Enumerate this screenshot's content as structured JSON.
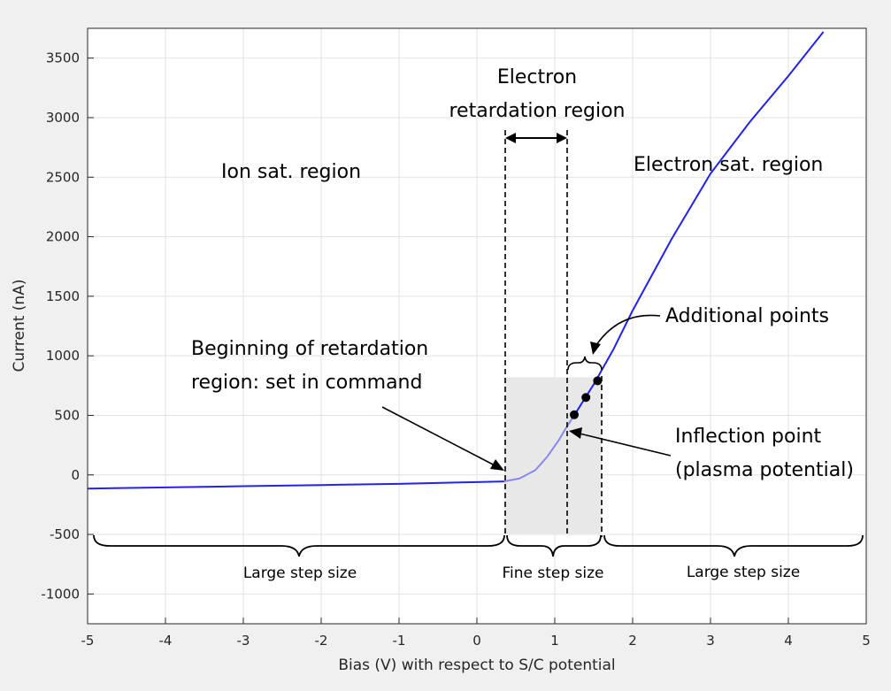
{
  "chart_data": {
    "type": "line",
    "xlabel": "Bias (V) with respect to S/C potential",
    "ylabel": "Current (nA)",
    "xlim": [
      -5,
      5
    ],
    "ylim": [
      -1250,
      3750
    ],
    "xticks": [
      -5,
      -4,
      -3,
      -2,
      -1,
      0,
      1,
      2,
      3,
      4,
      5
    ],
    "yticks": [
      -1000,
      -500,
      0,
      500,
      1000,
      1500,
      2000,
      2500,
      3000,
      3500
    ],
    "grid": true,
    "series": [
      {
        "color": "#2222ee",
        "x": [
          -5,
          -4,
          -3,
          -2,
          -1,
          0,
          0.35
        ],
        "y": [
          -115,
          -105,
          -95,
          -85,
          -75,
          -60,
          -55
        ]
      },
      {
        "color": "#8888ee",
        "x": [
          0.35,
          0.55,
          0.75,
          0.9,
          1.05,
          1.15,
          1.25
        ],
        "y": [
          -55,
          -30,
          40,
          150,
          290,
          400,
          500
        ]
      },
      {
        "color": "#2222ee",
        "x": [
          1.25,
          1.5,
          1.75,
          2,
          2.5,
          3,
          3.5,
          4,
          4.45
        ],
        "y": [
          500,
          760,
          1050,
          1380,
          1980,
          2530,
          2960,
          3350,
          3720
        ]
      }
    ],
    "points": {
      "x": [
        1.25,
        1.4,
        1.55
      ],
      "y": [
        505,
        650,
        790
      ]
    },
    "regions": {
      "fine_step_x": [
        0.35,
        1.6
      ],
      "fine_step_y": [
        -500,
        820
      ],
      "retardation_x": [
        0.35,
        1.15
      ]
    },
    "annotations": {
      "electron_retardation_line1": "Electron",
      "electron_retardation_line2": "retardation region",
      "ion_sat": "Ion sat. region",
      "electron_sat": "Electron sat. region",
      "additional_points": "Additional points",
      "beginning_line1": "Beginning of retardation",
      "beginning_line2": "region: set in command",
      "inflection_line1": "Inflection point",
      "inflection_line2": "(plasma potential)",
      "large_step_left": "Large step size",
      "fine_step": "Fine step size",
      "large_step_right": "Large step size"
    }
  }
}
